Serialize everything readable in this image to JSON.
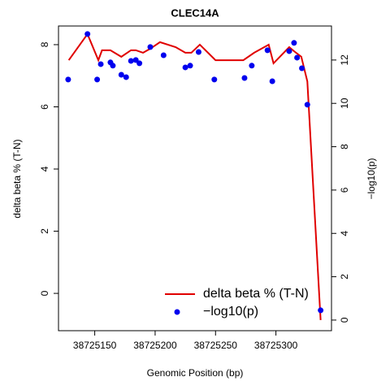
{
  "chart_data": {
    "type": "line",
    "title": "CLEC14A",
    "x_label": "Genomic Position (bp)",
    "y_label": "delta beta % (T-N)",
    "y2_label": "−log10(p)",
    "xlim": [
      38725120,
      38725346
    ],
    "xticks": [
      38725150,
      38725200,
      38725250,
      38725300
    ],
    "ylim": [
      -1.2,
      8.6
    ],
    "yticks": [
      0,
      2,
      4,
      6,
      8
    ],
    "y2lim": [
      -0.49,
      13.57
    ],
    "y2ticks": [
      0,
      2,
      4,
      6,
      8,
      10,
      12
    ],
    "legend": "bottom-right",
    "series": [
      {
        "name": "delta beta % (T-N)",
        "type": "line",
        "color": "#e00000",
        "axis": "y",
        "x": [
          38725128.5,
          38725144,
          38725153,
          38725156,
          38725163,
          38725172,
          38725180,
          38725184,
          38725190,
          38725196,
          38725204,
          38725217,
          38725225,
          38725230,
          38725237,
          38725250,
          38725259,
          38725273,
          38725282,
          38725294,
          38725298,
          38725311,
          38725315,
          38725321,
          38725326,
          38725337
        ],
        "values": [
          7.5,
          8.34,
          7.5,
          7.82,
          7.82,
          7.61,
          7.82,
          7.82,
          7.74,
          7.87,
          8.08,
          7.92,
          7.74,
          7.74,
          8.0,
          7.5,
          7.5,
          7.5,
          7.74,
          8.0,
          7.4,
          7.92,
          7.79,
          7.61,
          6.82,
          -0.86
        ]
      },
      {
        "name": "−log10(p)",
        "type": "scatter",
        "color": "#0000ee",
        "axis": "y2",
        "x": [
          38725128,
          38725144,
          38725152,
          38725155,
          38725163,
          38725165,
          38725172,
          38725176,
          38725180,
          38725184,
          38725187,
          38725196,
          38725207,
          38725225,
          38725229,
          38725236,
          38725249,
          38725274,
          38725280,
          38725293,
          38725297,
          38725311,
          38725315,
          38725317.5,
          38725321.5,
          38725326,
          38725337
        ],
        "values": [
          11.1,
          13.2,
          11.1,
          11.81,
          11.89,
          11.74,
          11.32,
          11.21,
          11.96,
          12.0,
          11.85,
          12.6,
          12.22,
          11.66,
          11.74,
          12.37,
          11.1,
          11.17,
          11.74,
          12.45,
          11.02,
          12.41,
          12.79,
          12.11,
          11.62,
          9.94,
          0.45
        ]
      }
    ]
  }
}
